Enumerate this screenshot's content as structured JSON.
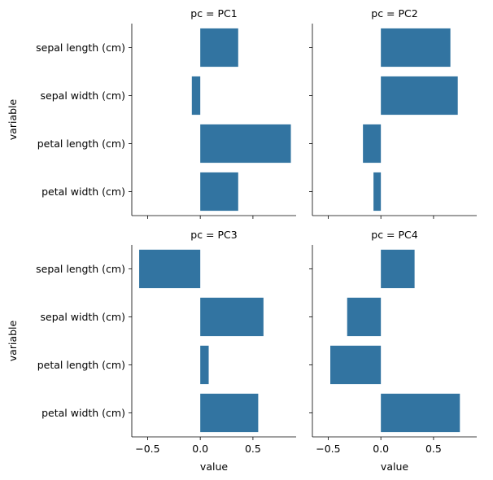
{
  "chart_data": {
    "type": "bar",
    "orientation": "horizontal",
    "categories": [
      "sepal length (cm)",
      "sepal width (cm)",
      "petal length (cm)",
      "petal width (cm)"
    ],
    "xlabel": "value",
    "ylabel": "variable",
    "xlim": [
      -0.65,
      0.91
    ],
    "xticks": [
      -0.5,
      0.0,
      0.5
    ],
    "xtick_labels": [
      "−0.5",
      "0.0",
      "0.5"
    ],
    "bar_color": "#3274a1",
    "panels": [
      {
        "title": "pc = PC1",
        "values": [
          0.36,
          -0.08,
          0.86,
          0.36
        ]
      },
      {
        "title": "pc = PC2",
        "values": [
          0.66,
          0.73,
          -0.17,
          -0.07
        ]
      },
      {
        "title": "pc = PC3",
        "values": [
          -0.58,
          0.6,
          0.08,
          0.55
        ]
      },
      {
        "title": "pc = PC4",
        "values": [
          0.32,
          -0.32,
          -0.48,
          0.75
        ]
      }
    ]
  }
}
